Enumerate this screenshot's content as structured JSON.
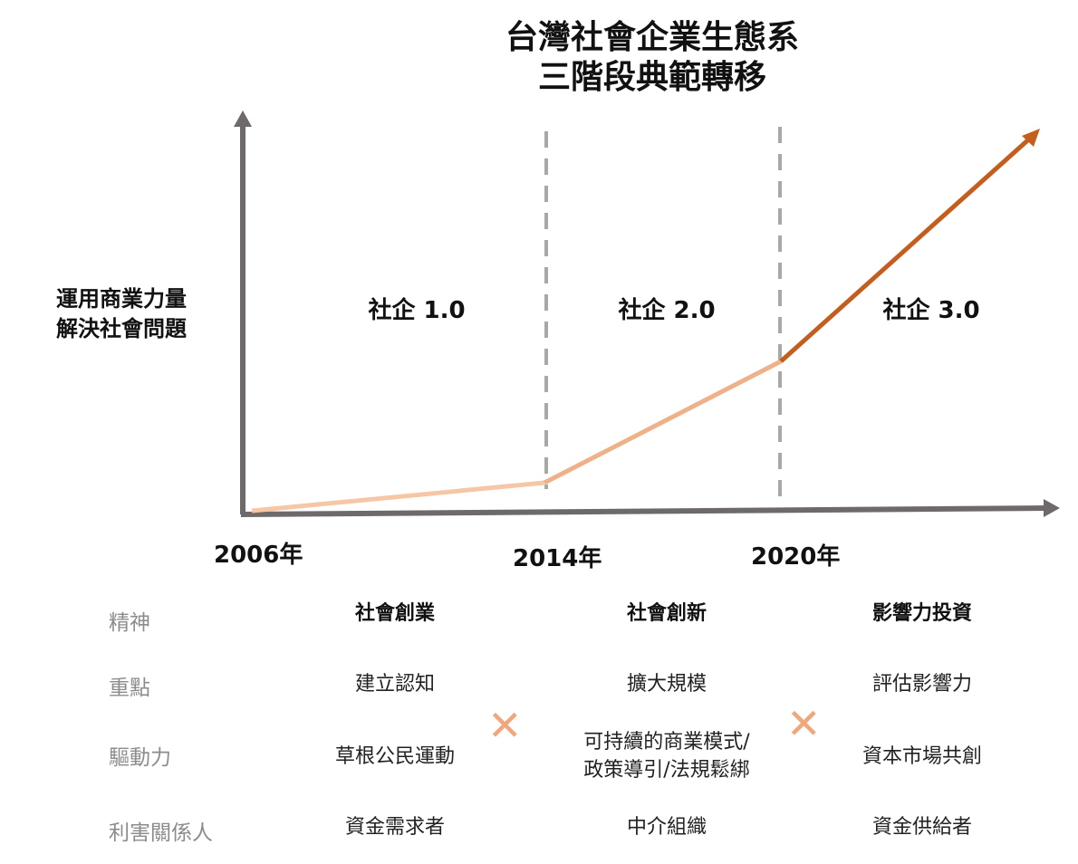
{
  "title": {
    "line1": "台灣社會企業生態系",
    "line2": "三階段典範轉移"
  },
  "y_label": {
    "line1": "運用商業力量",
    "line2": "解決社會問題"
  },
  "stages": [
    "社企 1.0",
    "社企 2.0",
    "社企 3.0"
  ],
  "years": [
    "2006年",
    "2014年",
    "2020年"
  ],
  "colors": {
    "axis": "#6e6a6b",
    "divider": "#a8a8a8",
    "line_early": "#f5c7a6",
    "line_mid": "#efb189",
    "line_late": "#c45e1e",
    "cross": "#f0a77c",
    "row_label": "#8c8c8c"
  },
  "table": {
    "row_labels": [
      "精神",
      "重點",
      "驅動力",
      "利害關係人"
    ],
    "columns": [
      {
        "spirit": "社會創業",
        "focus": "建立認知",
        "driver": "草根公民運動",
        "stakeholder": "資金需求者"
      },
      {
        "spirit": "社會創新",
        "focus": "擴大規模",
        "driver_line1": "可持續的商業模式/",
        "driver_line2": "政策導引/法規鬆綁",
        "stakeholder": "中介組織"
      },
      {
        "spirit": "影響力投資",
        "focus": "評估影響力",
        "driver": "資本市場共創",
        "stakeholder": "資金供給者"
      }
    ],
    "cross_symbol": "✕"
  }
}
